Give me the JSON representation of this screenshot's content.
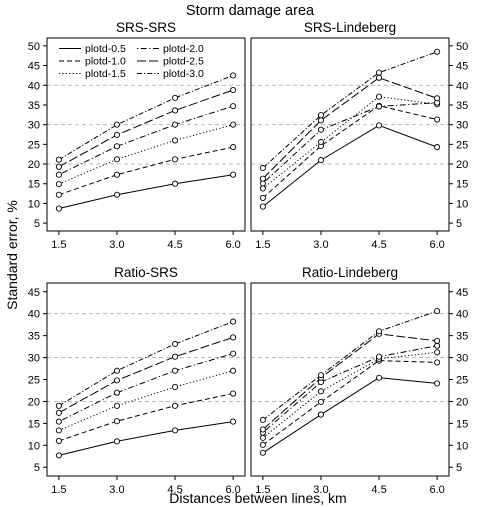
{
  "figure": {
    "title": "Storm damage area",
    "xlabel": "Distances between lines, km",
    "ylabel": "Standard error, %"
  },
  "chart_data": [
    {
      "type": "line",
      "title": "SRS-SRS",
      "x": [
        1.5,
        3.0,
        4.5,
        6.0
      ],
      "x_tick_labels": [
        "1.5",
        "3.0",
        "4.5",
        "6.0"
      ],
      "ylim": [
        3,
        52
      ],
      "y_ticks": [
        5,
        10,
        15,
        20,
        25,
        30,
        35,
        40,
        45,
        50
      ],
      "y_axis_side": "left",
      "reference_lines": [
        20,
        30,
        40
      ],
      "legend": "top-left",
      "series": [
        {
          "name": "plotd-0.5",
          "values": [
            8.7,
            12.2,
            15.0,
            17.3
          ]
        },
        {
          "name": "plotd-1.0",
          "values": [
            12.2,
            17.3,
            21.2,
            24.3
          ]
        },
        {
          "name": "plotd-1.5",
          "values": [
            14.9,
            21.2,
            26.0,
            30.0
          ]
        },
        {
          "name": "plotd-2.0",
          "values": [
            17.3,
            24.5,
            30.0,
            34.7
          ]
        },
        {
          "name": "plotd-2.5",
          "values": [
            19.3,
            27.4,
            33.6,
            38.8
          ]
        },
        {
          "name": "plotd-3.0",
          "values": [
            21.1,
            30.0,
            36.8,
            42.5
          ]
        }
      ]
    },
    {
      "type": "line",
      "title": "SRS-Lindeberg",
      "x": [
        1.5,
        3.0,
        4.5,
        6.0
      ],
      "x_tick_labels": [
        "1.5",
        "3.0",
        "4.5",
        "6.0"
      ],
      "ylim": [
        3,
        52
      ],
      "y_ticks": [
        5,
        10,
        15,
        20,
        25,
        30,
        35,
        40,
        45,
        50
      ],
      "y_axis_side": "right",
      "reference_lines": [
        20,
        30,
        40
      ],
      "series": [
        {
          "name": "plotd-0.5",
          "values": [
            9.2,
            21.0,
            29.8,
            24.3
          ]
        },
        {
          "name": "plotd-1.0",
          "values": [
            11.4,
            24.6,
            34.8,
            31.3
          ]
        },
        {
          "name": "plotd-1.5",
          "values": [
            13.8,
            25.6,
            37.1,
            35.2
          ]
        },
        {
          "name": "plotd-2.0",
          "values": [
            15.1,
            28.7,
            34.6,
            35.6
          ]
        },
        {
          "name": "plotd-2.5",
          "values": [
            16.3,
            31.1,
            41.9,
            36.7
          ]
        },
        {
          "name": "plotd-3.0",
          "values": [
            19.0,
            32.4,
            43.2,
            48.5
          ]
        }
      ]
    },
    {
      "type": "line",
      "title": "Ratio-SRS",
      "x": [
        1.5,
        3.0,
        4.5,
        6.0
      ],
      "x_tick_labels": [
        "1.5",
        "3.0",
        "4.5",
        "6.0"
      ],
      "ylim": [
        3,
        47
      ],
      "y_ticks": [
        5,
        10,
        15,
        20,
        25,
        30,
        35,
        40,
        45
      ],
      "y_axis_side": "left",
      "reference_lines": [
        20,
        30,
        40
      ],
      "series": [
        {
          "name": "plotd-0.5",
          "values": [
            7.7,
            10.9,
            13.4,
            15.4
          ]
        },
        {
          "name": "plotd-1.0",
          "values": [
            11.0,
            15.5,
            19.0,
            21.8
          ]
        },
        {
          "name": "plotd-1.5",
          "values": [
            13.4,
            19.0,
            23.3,
            27.0
          ]
        },
        {
          "name": "plotd-2.0",
          "values": [
            15.4,
            22.0,
            27.0,
            30.9
          ]
        },
        {
          "name": "plotd-2.5",
          "values": [
            17.4,
            24.8,
            30.2,
            34.6
          ]
        },
        {
          "name": "plotd-3.0",
          "values": [
            19.0,
            27.0,
            33.1,
            38.2
          ]
        }
      ]
    },
    {
      "type": "line",
      "title": "Ratio-Lindeberg",
      "x": [
        1.5,
        3.0,
        4.5,
        6.0
      ],
      "x_tick_labels": [
        "1.5",
        "3.0",
        "4.5",
        "6.0"
      ],
      "ylim": [
        3,
        47
      ],
      "y_ticks": [
        5,
        10,
        15,
        20,
        25,
        30,
        35,
        40,
        45
      ],
      "y_axis_side": "right",
      "reference_lines": [
        20,
        30,
        40
      ],
      "series": [
        {
          "name": "plotd-0.5",
          "values": [
            8.3,
            17.0,
            25.4,
            24.1
          ]
        },
        {
          "name": "plotd-1.0",
          "values": [
            10.1,
            19.9,
            29.3,
            28.9
          ]
        },
        {
          "name": "plotd-1.5",
          "values": [
            11.7,
            22.3,
            29.7,
            31.2
          ]
        },
        {
          "name": "plotd-2.0",
          "values": [
            12.9,
            24.4,
            30.2,
            32.7
          ]
        },
        {
          "name": "plotd-2.5",
          "values": [
            13.6,
            25.4,
            35.4,
            33.8
          ]
        },
        {
          "name": "plotd-3.0",
          "values": [
            15.8,
            26.0,
            36.0,
            40.6
          ]
        }
      ]
    }
  ],
  "style": {
    "line_color": "#000000",
    "grid_color": "#b0b0b0",
    "line_styles": [
      "solid",
      "dashed",
      "dotted",
      "dashdot",
      "longdash",
      "twodash"
    ]
  }
}
